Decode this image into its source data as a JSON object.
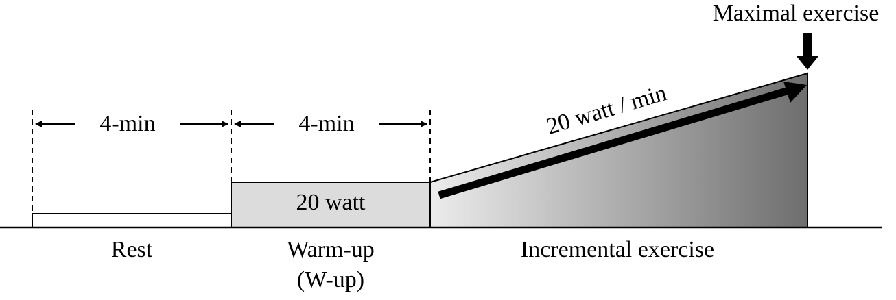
{
  "annotation": {
    "peak": "Maximal exercise",
    "slope": "20 watt / min"
  },
  "intervals": [
    "4-min",
    "4-min"
  ],
  "phases": [
    {
      "label": "Rest"
    },
    {
      "label": "Warm-up",
      "sublabel": "(W-up)",
      "load": "20 watt"
    },
    {
      "label": "Incremental exercise"
    }
  ]
}
